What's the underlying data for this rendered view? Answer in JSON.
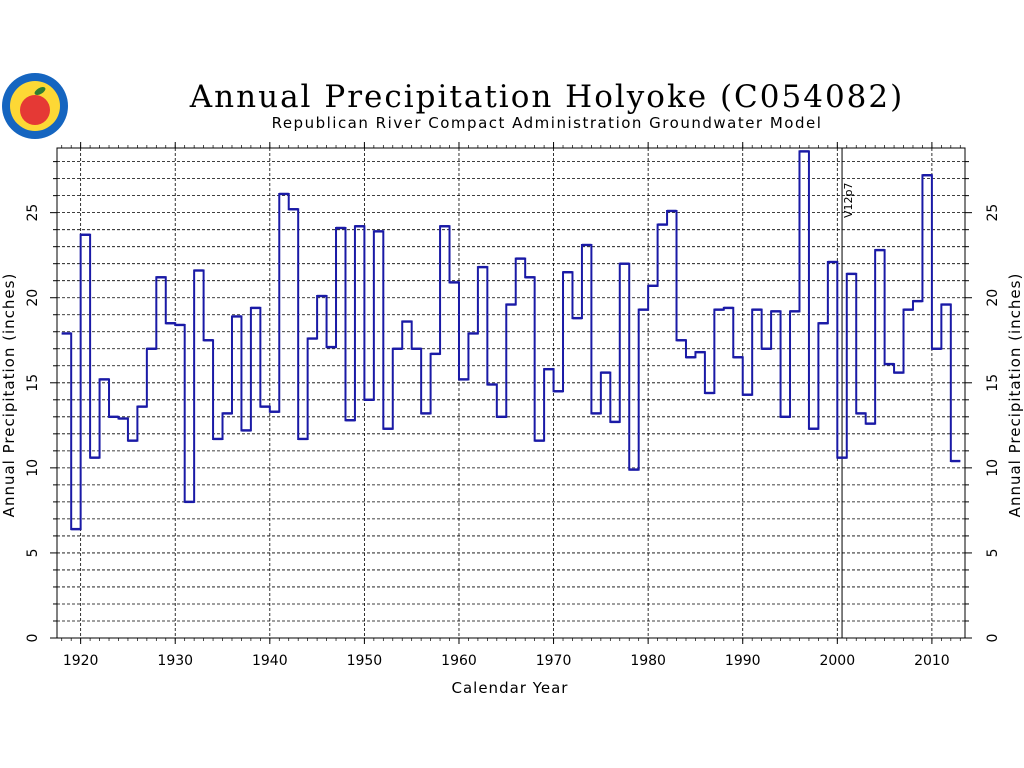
{
  "logo": {
    "icon": "apple-seal-icon",
    "colors": {
      "ring": "#1565c0",
      "apple": "#e53935",
      "leaf": "#2e7d32",
      "face": "#fdd835"
    }
  },
  "chart_data": {
    "type": "line",
    "style": "step",
    "title": "Annual Precipitation Holyoke (C054082)",
    "subtitle": "Republican River Compact Administration Groundwater Model",
    "xlabel": "Calendar Year",
    "ylabel": "Annual Precipitation (inches)",
    "ylabel_right": "Annual Precipitation (inches)",
    "xlim": [
      1917.5,
      2013.5
    ],
    "ylim": [
      0,
      28.8
    ],
    "x_ticks": [
      1920,
      1930,
      1940,
      1950,
      1960,
      1970,
      1980,
      1990,
      2000,
      2010
    ],
    "y_ticks": [
      0,
      5,
      10,
      15,
      20,
      25
    ],
    "y_minor_step": 1,
    "grid": true,
    "line_color": "#1a1aa6",
    "annotation": {
      "label": "V12p7",
      "x": 2000.5
    },
    "x": [
      1918,
      1919,
      1920,
      1921,
      1922,
      1923,
      1924,
      1925,
      1926,
      1927,
      1928,
      1929,
      1930,
      1931,
      1932,
      1933,
      1934,
      1935,
      1936,
      1937,
      1938,
      1939,
      1940,
      1941,
      1942,
      1943,
      1944,
      1945,
      1946,
      1947,
      1948,
      1949,
      1950,
      1951,
      1952,
      1953,
      1954,
      1955,
      1956,
      1957,
      1958,
      1959,
      1960,
      1961,
      1962,
      1963,
      1964,
      1965,
      1966,
      1967,
      1968,
      1969,
      1970,
      1971,
      1972,
      1973,
      1974,
      1975,
      1976,
      1977,
      1978,
      1979,
      1980,
      1981,
      1982,
      1983,
      1984,
      1985,
      1986,
      1987,
      1988,
      1989,
      1990,
      1991,
      1992,
      1993,
      1994,
      1995,
      1996,
      1997,
      1998,
      1999,
      2000,
      2001,
      2002,
      2003,
      2004,
      2005,
      2006,
      2007,
      2008,
      2009,
      2010,
      2011,
      2012
    ],
    "values": [
      17.9,
      6.4,
      23.7,
      10.6,
      15.2,
      13.0,
      12.9,
      11.6,
      13.6,
      17.0,
      21.2,
      18.5,
      18.4,
      8.0,
      21.6,
      17.5,
      11.7,
      13.2,
      18.9,
      12.2,
      19.4,
      13.6,
      13.3,
      26.1,
      25.2,
      11.7,
      17.6,
      20.1,
      17.1,
      24.1,
      12.8,
      24.2,
      14.0,
      23.9,
      12.3,
      17.0,
      18.6,
      17.0,
      13.2,
      16.7,
      24.2,
      20.9,
      15.2,
      17.9,
      21.8,
      14.9,
      13.0,
      19.6,
      22.3,
      21.2,
      11.6,
      15.8,
      14.5,
      21.5,
      18.8,
      23.1,
      13.2,
      15.6,
      12.7,
      22.0,
      9.9,
      19.3,
      20.7,
      24.3,
      25.1,
      17.5,
      16.5,
      16.8,
      14.4,
      19.3,
      19.4,
      16.5,
      14.3,
      19.3,
      17.0,
      19.2,
      13.0,
      19.2,
      28.6,
      12.3,
      18.5,
      22.1,
      10.6,
      21.4,
      13.2,
      12.6,
      22.8,
      16.1,
      15.6,
      19.3,
      19.8,
      27.2,
      17.0,
      19.6,
      10.4
    ]
  }
}
